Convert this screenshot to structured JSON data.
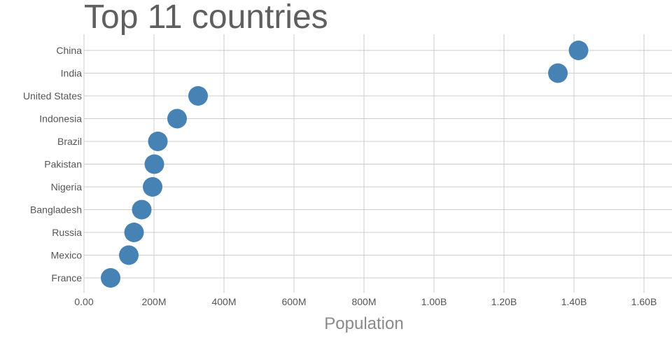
{
  "chart_data": {
    "type": "scatter",
    "title": "Top 11 countries",
    "xlabel": "Population",
    "ylabel": "",
    "xlim": [
      0,
      1680000000
    ],
    "x_ticks": [
      {
        "value": 0,
        "label": "0.00"
      },
      {
        "value": 200000000,
        "label": "200M"
      },
      {
        "value": 400000000,
        "label": "400M"
      },
      {
        "value": 600000000,
        "label": "600M"
      },
      {
        "value": 800000000,
        "label": "800M"
      },
      {
        "value": 1000000000,
        "label": "1.00B"
      },
      {
        "value": 1200000000,
        "label": "1.20B"
      },
      {
        "value": 1400000000,
        "label": "1.40B"
      },
      {
        "value": 1600000000,
        "label": "1.60B"
      }
    ],
    "categories": [
      "China",
      "India",
      "United States",
      "Indonesia",
      "Brazil",
      "Pakistan",
      "Nigeria",
      "Bangladesh",
      "Russia",
      "Mexico",
      "France"
    ],
    "values": [
      1413000000,
      1354000000,
      326000000,
      266000000,
      211000000,
      201000000,
      196000000,
      165000000,
      143000000,
      128000000,
      76000000
    ],
    "grid": true,
    "colors": {
      "marker": "#4682b4",
      "grid": "#cccccc",
      "text": "#555555",
      "title": "#5f5f5f",
      "axis_title": "#8a8a8a"
    }
  }
}
